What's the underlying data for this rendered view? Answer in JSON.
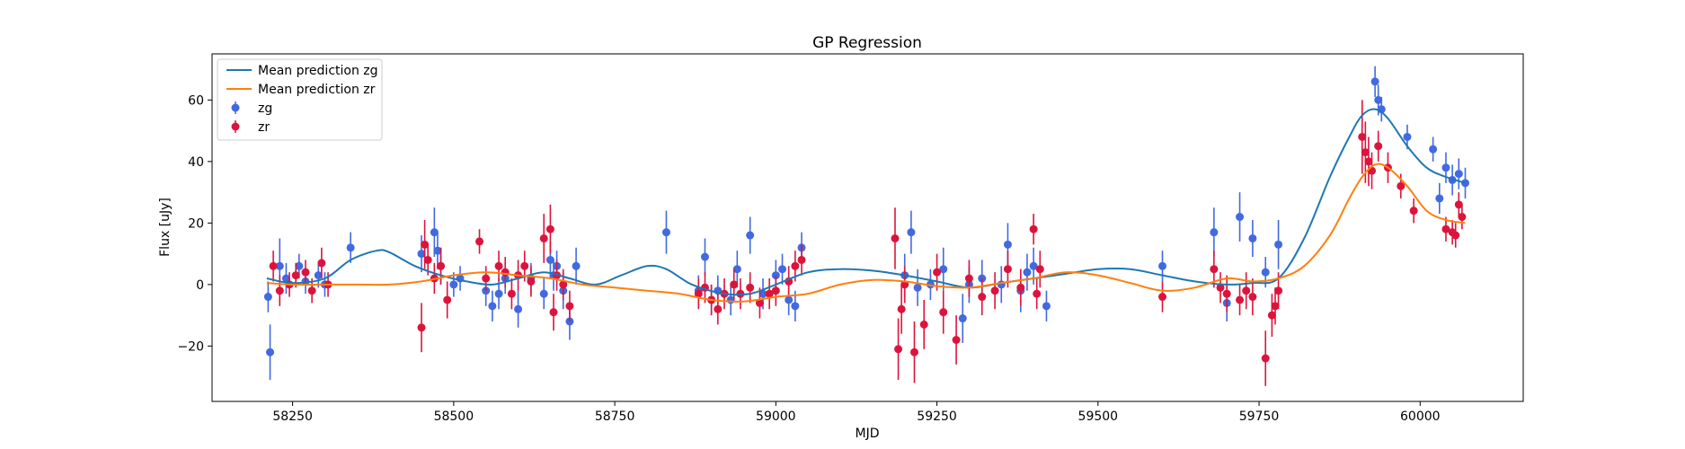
{
  "chart_data": {
    "type": "scatter",
    "title": "GP Regression",
    "xlabel": "MJD",
    "ylabel": "Flux [uJy]",
    "xlim": [
      58125,
      60160
    ],
    "ylim": [
      -38,
      75
    ],
    "xticks": [
      58250,
      58500,
      58750,
      59000,
      59250,
      59500,
      59750,
      60000
    ],
    "yticks": [
      -20,
      0,
      20,
      40,
      60
    ],
    "grid": false,
    "legend_position": "top-left",
    "legend": [
      "Mean prediction zg",
      "Mean prediction zr",
      "zg",
      "zr"
    ],
    "colors": {
      "line_zg": "#1f77b4",
      "line_zr": "#ff7f0e",
      "points_zg": "#4169e1",
      "points_zr": "#dc143c"
    },
    "series": [
      {
        "name": "Mean prediction zg",
        "kind": "line",
        "x": [
          58210,
          58250,
          58300,
          58340,
          58380,
          58400,
          58440,
          58480,
          58520,
          58560,
          58600,
          58640,
          58680,
          58720,
          58760,
          58800,
          58830,
          58870,
          58920,
          58960,
          59000,
          59050,
          59100,
          59150,
          59200,
          59250,
          59300,
          59350,
          59400,
          59450,
          59500,
          59550,
          59600,
          59650,
          59700,
          59740,
          59780,
          59820,
          59860,
          59890,
          59910,
          59930,
          59950,
          59980,
          60010,
          60040,
          60070
        ],
        "y": [
          2,
          0.5,
          2,
          8,
          11,
          10.5,
          6,
          3,
          1,
          0,
          2,
          4,
          2,
          0,
          3,
          6,
          5,
          0,
          -3,
          -3,
          0,
          4,
          5,
          4.5,
          3,
          1,
          -1,
          0.5,
          2,
          3.5,
          5,
          5,
          3,
          1,
          0,
          0.5,
          2,
          15,
          35,
          48,
          55,
          57,
          54,
          45,
          38,
          35,
          33
        ]
      },
      {
        "name": "Mean prediction zr",
        "kind": "line",
        "x": [
          58210,
          58250,
          58300,
          58350,
          58400,
          58450,
          58500,
          58550,
          58600,
          58650,
          58700,
          58750,
          58800,
          58850,
          58900,
          58950,
          59000,
          59050,
          59100,
          59150,
          59200,
          59250,
          59300,
          59350,
          59400,
          59450,
          59500,
          59550,
          59600,
          59650,
          59700,
          59740,
          59780,
          59820,
          59860,
          59890,
          59910,
          59930,
          59950,
          59980,
          60010,
          60040,
          60070
        ],
        "y": [
          0.5,
          0,
          0,
          0,
          0,
          1,
          3,
          4,
          3,
          2,
          0,
          -1,
          -2,
          -3,
          -5,
          -5.5,
          -4,
          -3,
          0,
          1.5,
          1,
          -0.5,
          -1,
          0.5,
          2,
          4,
          3,
          0.5,
          -2,
          -1,
          2,
          1,
          2,
          6,
          16,
          28,
          35,
          39,
          38,
          32,
          24,
          21,
          20
        ]
      },
      {
        "name": "zg",
        "kind": "points",
        "x": [
          58212,
          58215,
          58230,
          58240,
          58260,
          58270,
          58290,
          58300,
          58340,
          58450,
          58470,
          58475,
          58480,
          58500,
          58510,
          58550,
          58560,
          58570,
          58580,
          58600,
          58620,
          58640,
          58650,
          58655,
          58660,
          58670,
          58680,
          58690,
          58830,
          58880,
          58890,
          58900,
          58910,
          58930,
          58940,
          58960,
          58980,
          59000,
          59010,
          59020,
          59030,
          59040,
          59200,
          59210,
          59220,
          59240,
          59260,
          59290,
          59300,
          59320,
          59350,
          59360,
          59380,
          59390,
          59400,
          59420,
          59600,
          59680,
          59700,
          59720,
          59740,
          59760,
          59780,
          59930,
          59935,
          59940,
          59980,
          60020,
          60030,
          60040,
          60050,
          60060,
          60070
        ],
        "y": [
          -4,
          -22,
          6,
          2,
          6,
          1,
          3,
          0,
          12,
          10,
          17,
          11,
          6,
          0,
          2,
          -2,
          -7,
          -3,
          2,
          -8,
          2,
          -3,
          8,
          3,
          6,
          -2,
          -12,
          6,
          17,
          -2,
          9,
          -5,
          -2,
          -5,
          5,
          16,
          -3,
          3,
          5,
          -5,
          -7,
          12,
          3,
          17,
          -1,
          0,
          5,
          -11,
          0,
          2,
          0,
          13,
          -2,
          4,
          6,
          -7,
          6,
          17,
          -6,
          22,
          15,
          4,
          13,
          66,
          60,
          57,
          48,
          44,
          28,
          38,
          34,
          36,
          33
        ],
        "err": [
          5,
          9,
          9,
          5,
          4,
          4,
          4,
          4,
          5,
          6,
          8,
          6,
          6,
          4,
          4,
          5,
          5,
          5,
          5,
          6,
          5,
          5,
          6,
          5,
          5,
          6,
          6,
          6,
          7,
          5,
          6,
          5,
          5,
          5,
          6,
          6,
          5,
          5,
          5,
          5,
          5,
          5,
          7,
          7,
          6,
          5,
          7,
          8,
          6,
          6,
          6,
          7,
          7,
          6,
          6,
          5,
          5,
          8,
          6,
          8,
          6,
          5,
          8,
          5,
          5,
          4,
          4,
          4,
          5,
          5,
          5,
          5,
          5
        ],
        "color": "#4169e1"
      },
      {
        "name": "zr",
        "kind": "points",
        "x": [
          58220,
          58230,
          58245,
          58255,
          58270,
          58280,
          58295,
          58305,
          58450,
          58455,
          58460,
          58470,
          58480,
          58490,
          58540,
          58550,
          58570,
          58580,
          58590,
          58600,
          58610,
          58620,
          58640,
          58650,
          58655,
          58660,
          58670,
          58680,
          58880,
          58890,
          58900,
          58910,
          58920,
          58935,
          58945,
          58960,
          58975,
          58990,
          59000,
          59020,
          59030,
          59040,
          59185,
          59190,
          59195,
          59200,
          59215,
          59230,
          59250,
          59260,
          59280,
          59300,
          59320,
          59340,
          59360,
          59380,
          59400,
          59405,
          59410,
          59600,
          59680,
          59690,
          59700,
          59720,
          59730,
          59740,
          59760,
          59770,
          59775,
          59780,
          59910,
          59915,
          59920,
          59925,
          59935,
          59950,
          59970,
          59990,
          60040,
          60050,
          60055,
          60060,
          60065
        ],
        "y": [
          6,
          -2,
          0,
          3,
          4,
          -2,
          7,
          0,
          -14,
          13,
          8,
          2,
          6,
          -5,
          14,
          2,
          6,
          4,
          -3,
          3,
          6,
          1,
          15,
          18,
          -9,
          3,
          0,
          -7,
          -3,
          -1,
          -5,
          -8,
          -3,
          0,
          -3,
          -1,
          -6,
          -3,
          -2,
          1,
          6,
          8,
          15,
          -21,
          -8,
          0,
          -22,
          -13,
          4,
          -9,
          -18,
          2,
          -4,
          -2,
          5,
          -1,
          18,
          -3,
          5,
          -4,
          5,
          -1,
          -3,
          -5,
          -2,
          -4,
          -24,
          -10,
          -7,
          -2,
          48,
          43,
          40,
          37,
          45,
          38,
          32,
          24,
          18,
          17,
          16,
          26,
          22
        ],
        "err": [
          5,
          5,
          4,
          4,
          4,
          4,
          5,
          4,
          8,
          8,
          5,
          5,
          6,
          6,
          4,
          4,
          5,
          5,
          5,
          5,
          5,
          5,
          8,
          8,
          6,
          5,
          5,
          5,
          5,
          5,
          5,
          5,
          5,
          5,
          5,
          5,
          5,
          5,
          5,
          5,
          5,
          5,
          10,
          10,
          8,
          6,
          10,
          8,
          6,
          7,
          8,
          6,
          6,
          6,
          6,
          6,
          5,
          5,
          6,
          5,
          6,
          5,
          6,
          5,
          6,
          6,
          9,
          7,
          6,
          6,
          12,
          10,
          8,
          6,
          5,
          5,
          4,
          4,
          4,
          4,
          4,
          4,
          4
        ],
        "color": "#dc143c"
      }
    ]
  }
}
